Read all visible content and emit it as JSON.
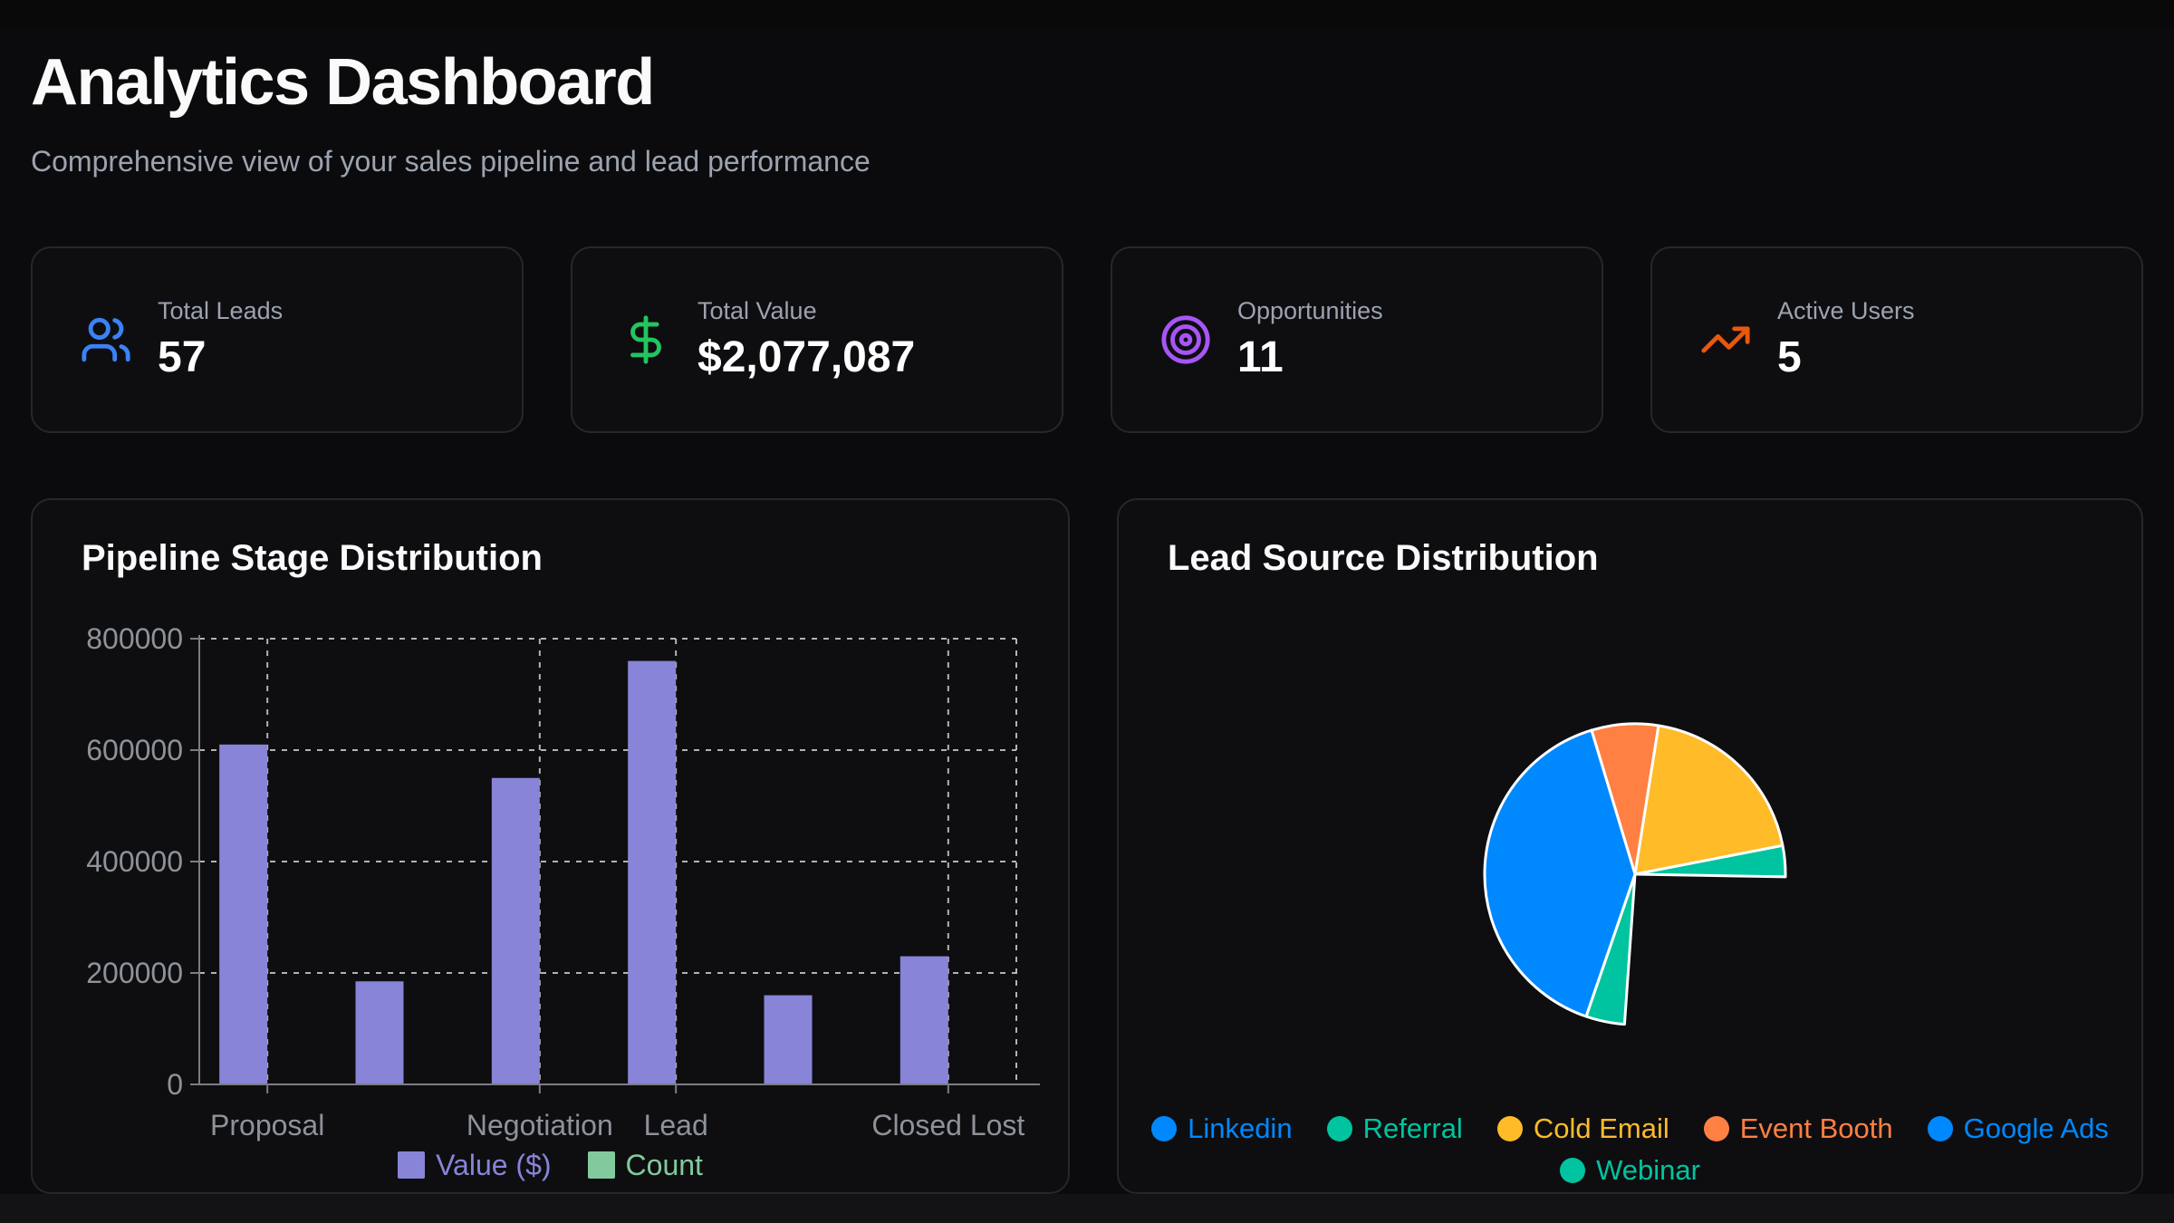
{
  "page": {
    "title": "Analytics Dashboard",
    "subtitle": "Comprehensive view of your sales pipeline and lead performance"
  },
  "colors": {
    "page_bg": "#0b0b0d",
    "card_bg": "#0e0e11",
    "card_border": "#27272b",
    "muted_text": "#9ca3af",
    "axis_text": "#8e9299",
    "grid_line": "#cfcfcf",
    "axis_line": "#7a7d84",
    "bar_purple": "#8884d8",
    "legend_green": "#82ca9d",
    "pie_blue": "#0088FE",
    "pie_teal": "#00C49F",
    "pie_yellow": "#FFBB28",
    "pie_orange": "#FF8042"
  },
  "stats": [
    {
      "label": "Total Leads",
      "value": "57",
      "icon": "users-icon",
      "color": "#3b82f6"
    },
    {
      "label": "Total Value",
      "value": "$2,077,087",
      "icon": "dollar-sign-icon",
      "color": "#22c55e"
    },
    {
      "label": "Opportunities",
      "value": "11",
      "icon": "target-icon",
      "color": "#a855f7"
    },
    {
      "label": "Active Users",
      "value": "5",
      "icon": "trending-up-icon",
      "color": "#ea580c"
    }
  ],
  "chart_data": [
    {
      "type": "bar",
      "title": "Pipeline Stage Distribution",
      "categories": [
        "Proposal",
        "",
        "Negotiation",
        "Lead",
        "",
        "Closed Lost"
      ],
      "visible_x_tick_labels": [
        "Proposal",
        "Negotiation",
        "Lead",
        "Closed Lost"
      ],
      "labeled_band_indexes": [
        0,
        2,
        3,
        5
      ],
      "series": [
        {
          "name": "Value ($)",
          "color": "#8884d8",
          "values": [
            610000,
            185000,
            550000,
            760000,
            160000,
            230000
          ]
        },
        {
          "name": "Count",
          "color": "#82ca9d",
          "values_visible_as_bars": false
        }
      ],
      "ylabel": "",
      "xlabel": "",
      "ylim": [
        0,
        800000
      ],
      "y_ticks": [
        0,
        200000,
        400000,
        600000,
        800000
      ],
      "grid": "dashed",
      "legend_position": "bottom"
    },
    {
      "type": "pie",
      "title": "Lead Source Distribution",
      "note": "angles are compass bearings, clockwise from 12 o'clock; sector 91°–184° is empty (no slice drawn)",
      "slices": [
        {
          "label": "Event Booth",
          "color": "#FF8042",
          "start_deg": -16.8,
          "end_deg": 9,
          "est_share_pct": 10
        },
        {
          "label": "Cold Email",
          "color": "#FFBB28",
          "start_deg": 9,
          "end_deg": 79,
          "est_share_pct": 26
        },
        {
          "label": "Referral",
          "color": "#00C49F",
          "start_deg": 79,
          "end_deg": 91,
          "est_share_pct": 4
        },
        {
          "label": "Webinar",
          "color": "#00C49F",
          "start_deg": 184,
          "end_deg": 199,
          "est_share_pct": 6
        },
        {
          "label": "Google Ads",
          "color": "#0088FE",
          "start_deg": 199,
          "end_deg": 343.2,
          "est_share_pct": 54
        }
      ],
      "legend_rows": [
        [
          {
            "label": "Linkedin",
            "color": "#0088FE"
          },
          {
            "label": "Referral",
            "color": "#00C49F"
          },
          {
            "label": "Cold Email",
            "color": "#FFBB28"
          },
          {
            "label": "Event Booth",
            "color": "#FF8042"
          },
          {
            "label": "Google Ads",
            "color": "#0088FE"
          }
        ],
        [
          {
            "label": "Webinar",
            "color": "#00C49F"
          }
        ]
      ],
      "legend_position": "bottom"
    }
  ]
}
